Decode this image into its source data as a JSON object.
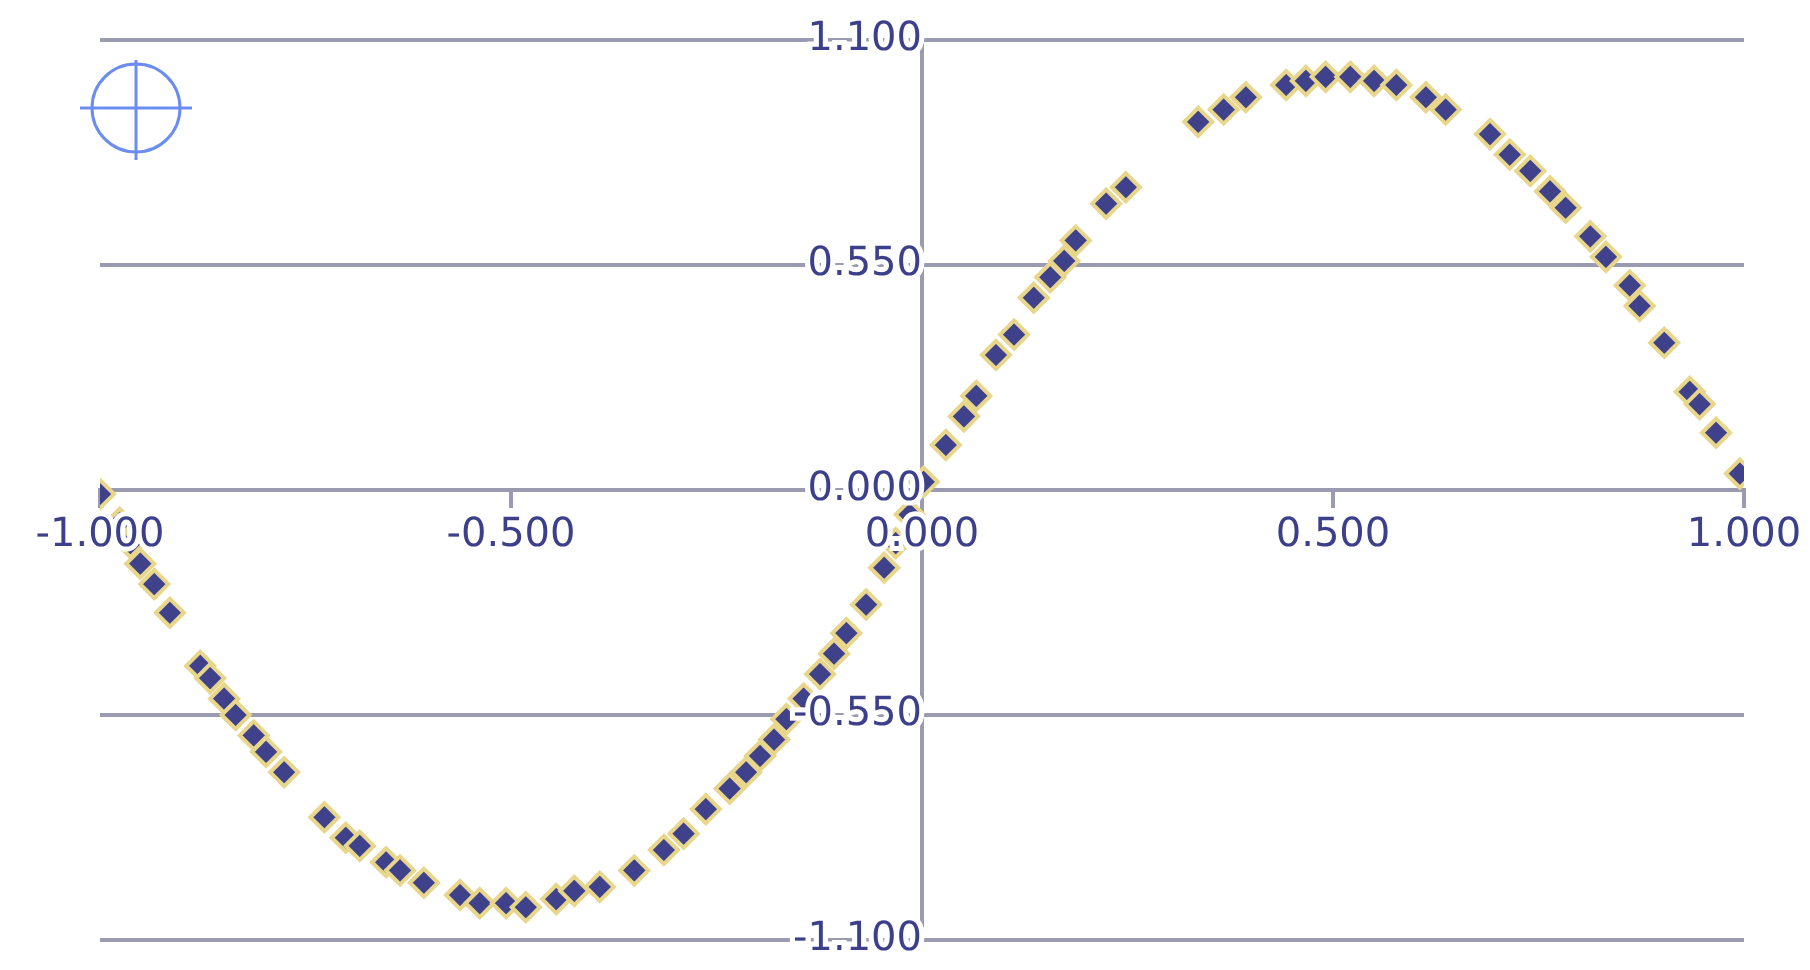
{
  "chart_data": {
    "type": "scatter",
    "marker": "diamond",
    "grid": "y",
    "legend": false,
    "xlim": [
      -1,
      1
    ],
    "ylim": [
      -1.1,
      1.1
    ],
    "xticks": [
      {
        "value": -1,
        "label": "-1.000"
      },
      {
        "value": -0.5,
        "label": "-0.500"
      },
      {
        "value": 0,
        "label": "0.000"
      },
      {
        "value": 0.5,
        "label": "0.500"
      },
      {
        "value": 1,
        "label": "1.000"
      }
    ],
    "yticks": [
      {
        "value": -1.1,
        "label": "-1.100"
      },
      {
        "value": -0.55,
        "label": "-0.550"
      },
      {
        "value": 0,
        "label": "0.000"
      },
      {
        "value": 0.55,
        "label": "0.550"
      },
      {
        "value": 1.1,
        "label": "1.100"
      }
    ],
    "series": [
      {
        "color": "#3f428a",
        "x": [
          -1.0,
          -0.976,
          -0.963,
          -0.951,
          -0.934,
          -0.915,
          -0.878,
          -0.866,
          -0.849,
          -0.835,
          -0.813,
          -0.798,
          -0.776,
          -0.727,
          -0.701,
          -0.684,
          -0.652,
          -0.635,
          -0.606,
          -0.562,
          -0.538,
          -0.506,
          -0.482,
          -0.445,
          -0.423,
          -0.392,
          -0.35,
          -0.314,
          -0.29,
          -0.263,
          -0.234,
          -0.214,
          -0.197,
          -0.18,
          -0.165,
          -0.144,
          -0.124,
          -0.107,
          -0.092,
          -0.068,
          -0.046,
          -0.032,
          -0.015,
          0.002,
          0.029,
          0.051,
          0.066,
          0.09,
          0.112,
          0.136,
          0.156,
          0.173,
          0.187,
          0.224,
          0.248,
          0.336,
          0.367,
          0.394,
          0.443,
          0.467,
          0.491,
          0.521,
          0.55,
          0.577,
          0.613,
          0.637,
          0.691,
          0.715,
          0.74,
          0.764,
          0.783,
          0.813,
          0.832,
          0.861,
          0.873,
          0.903,
          0.934,
          0.946,
          0.966,
          0.995
        ],
        "values": [
          -0.01,
          -0.08,
          -0.13,
          -0.18,
          -0.23,
          -0.3,
          -0.43,
          -0.46,
          -0.51,
          -0.55,
          -0.6,
          -0.64,
          -0.69,
          -0.8,
          -0.85,
          -0.87,
          -0.91,
          -0.93,
          -0.96,
          -0.99,
          -1.01,
          -1.01,
          -1.02,
          -1.0,
          -0.98,
          -0.97,
          -0.93,
          -0.88,
          -0.84,
          -0.78,
          -0.73,
          -0.69,
          -0.65,
          -0.61,
          -0.56,
          -0.51,
          -0.45,
          -0.4,
          -0.35,
          -0.28,
          -0.19,
          -0.13,
          -0.06,
          0.02,
          0.11,
          0.18,
          0.23,
          0.33,
          0.38,
          0.47,
          0.52,
          0.56,
          0.61,
          0.7,
          0.74,
          0.9,
          0.93,
          0.96,
          0.99,
          1.0,
          1.01,
          1.01,
          1.0,
          0.99,
          0.96,
          0.93,
          0.87,
          0.82,
          0.78,
          0.73,
          0.69,
          0.62,
          0.57,
          0.5,
          0.45,
          0.36,
          0.24,
          0.21,
          0.14,
          0.04
        ]
      }
    ]
  }
}
